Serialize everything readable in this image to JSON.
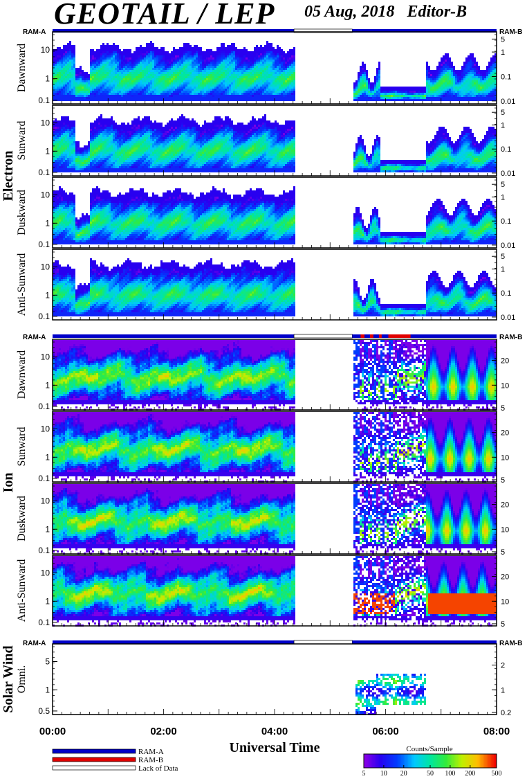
{
  "header": {
    "title": "GEOTAIL / LEP",
    "date": "05 Aug, 2018",
    "editor": "Editor-B"
  },
  "colors": {
    "ram_a": "#0000c8",
    "ram_b": "#e00000",
    "lack_of_data": "#ffffff"
  },
  "groups": [
    {
      "label": "Electron"
    },
    {
      "label": "Ion"
    },
    {
      "label": "Solar Wind"
    }
  ],
  "chart_data": {
    "type": "heatmap",
    "xlabel": "Universal Time",
    "x_ticks": [
      "00:00",
      "02:00",
      "04:00",
      "06:00",
      "08:00"
    ],
    "x_range_hours": [
      0,
      8
    ],
    "data_gap_hours": [
      4.35,
      5.4
    ],
    "status_bar": {
      "left_label": "RAM-A",
      "right_label": "RAM-B",
      "segments": [
        {
          "start": 0,
          "end": 4.35,
          "mode": "RAM-A"
        },
        {
          "start": 4.35,
          "end": 5.4,
          "mode": "Lack of Data"
        },
        {
          "start": 5.4,
          "end": 8,
          "mode": "RAM-A"
        }
      ]
    },
    "ion_status_ramb_segments": [
      [
        5.55,
        5.62
      ],
      [
        5.72,
        5.78
      ],
      [
        5.88,
        5.93
      ],
      [
        6.05,
        6.45
      ]
    ],
    "panels": [
      {
        "group": "Electron",
        "label": "Dawnward",
        "left_ticks": [
          "10",
          "1",
          "0.1"
        ],
        "right_ticks": [
          "5",
          "1",
          "0.1",
          "0.01"
        ]
      },
      {
        "group": "Electron",
        "label": "Sunward",
        "left_ticks": [
          "10",
          "1",
          "0.1"
        ],
        "right_ticks": [
          "5",
          "1",
          "0.1",
          "0.01"
        ]
      },
      {
        "group": "Electron",
        "label": "Duskward",
        "left_ticks": [
          "10",
          "1",
          "0.1"
        ],
        "right_ticks": [
          "5",
          "1",
          "0.1",
          "0.01"
        ]
      },
      {
        "group": "Electron",
        "label": "Anti-Sunward",
        "left_ticks": [
          "10",
          "1",
          "0.1"
        ],
        "right_ticks": [
          "5",
          "1",
          "0.1",
          "0.01"
        ]
      },
      {
        "group": "Ion",
        "label": "Dawnward",
        "left_ticks": [
          "10",
          "1",
          "0.1"
        ],
        "right_ticks": [
          "20",
          "10",
          "5"
        ]
      },
      {
        "group": "Ion",
        "label": "Sunward",
        "left_ticks": [
          "10",
          "1",
          "0.1"
        ],
        "right_ticks": [
          "20",
          "10",
          "5"
        ]
      },
      {
        "group": "Ion",
        "label": "Duskward",
        "left_ticks": [
          "10",
          "1",
          "0.1"
        ],
        "right_ticks": [
          "20",
          "10",
          "5"
        ]
      },
      {
        "group": "Ion",
        "label": "Anti-Sunward",
        "left_ticks": [
          "10",
          "1",
          "0.1"
        ],
        "right_ticks": [
          "20",
          "10",
          "5"
        ]
      },
      {
        "group": "Solar Wind",
        "label": "Omni.",
        "left_ticks": [
          "5",
          "1",
          "0.5"
        ],
        "right_ticks": [
          "2",
          "1",
          "0.2"
        ]
      }
    ],
    "legend": {
      "items": [
        "RAM-A",
        "RAM-B",
        "Lack of Data"
      ],
      "colorbar_title": "Counts/Sample",
      "colorbar_ticks": [
        "5",
        "10",
        "20",
        "50",
        "100",
        "200",
        "500"
      ],
      "colorbar_range": [
        5,
        500
      ]
    }
  }
}
